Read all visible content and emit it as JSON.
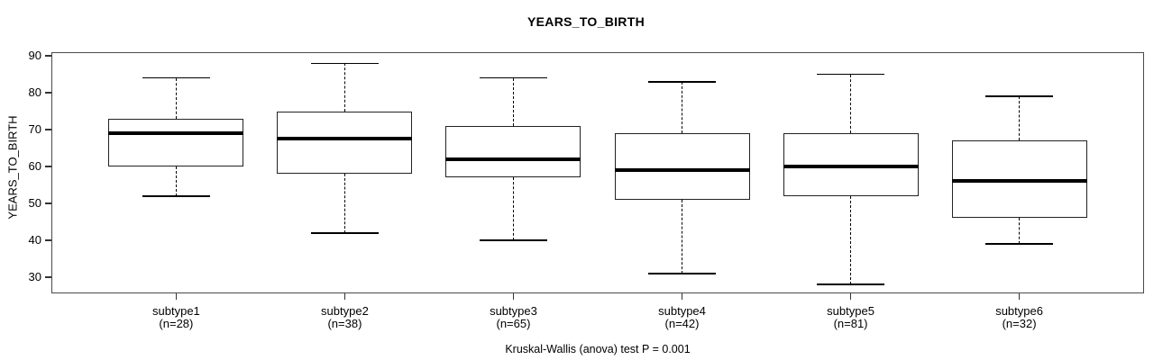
{
  "title": "YEARS_TO_BIRTH",
  "y_axis_label": "YEARS_TO_BIRTH",
  "caption": "Kruskal-Wallis (anova) test P = 0.001",
  "chart_data": {
    "type": "boxplot",
    "title": "YEARS_TO_BIRTH",
    "xlabel": "",
    "ylabel": "YEARS_TO_BIRTH",
    "caption": "Kruskal-Wallis (anova) test P = 0.001",
    "grid": false,
    "legend": null,
    "y_ticks": [
      30,
      40,
      50,
      60,
      70,
      80,
      90
    ],
    "ylim": [
      25.6,
      91
    ],
    "xlim": [
      0.26,
      6.74
    ],
    "box_width_units": 0.8,
    "categories": [
      "subtype1",
      "subtype2",
      "subtype3",
      "subtype4",
      "subtype5",
      "subtype6"
    ],
    "n_labels": [
      "(n=28)",
      "(n=38)",
      "(n=65)",
      "(n=42)",
      "(n=81)",
      "(n=32)"
    ],
    "series": [
      {
        "name": "subtype1",
        "n": 28,
        "whisker_low": 52,
        "q1": 60,
        "median": 69,
        "q3": 73,
        "whisker_high": 84
      },
      {
        "name": "subtype2",
        "n": 38,
        "whisker_low": 42,
        "q1": 58,
        "median": 67.5,
        "q3": 75,
        "whisker_high": 88
      },
      {
        "name": "subtype3",
        "n": 65,
        "whisker_low": 40,
        "q1": 57,
        "median": 62,
        "q3": 71,
        "whisker_high": 84
      },
      {
        "name": "subtype4",
        "n": 42,
        "whisker_low": 31,
        "q1": 51,
        "median": 59,
        "q3": 69,
        "whisker_high": 83
      },
      {
        "name": "subtype5",
        "n": 81,
        "whisker_low": 28,
        "q1": 52,
        "median": 60,
        "q3": 69,
        "whisker_high": 85
      },
      {
        "name": "subtype6",
        "n": 32,
        "whisker_low": 39,
        "q1": 46,
        "median": 56,
        "q3": 67,
        "whisker_high": 79
      }
    ],
    "colors": {
      "background": "#ffffff",
      "box_fill": "#ffffff",
      "box_border": "#222222",
      "line": "#000000",
      "frame": "#4a4a4a",
      "text": "#000000"
    }
  }
}
